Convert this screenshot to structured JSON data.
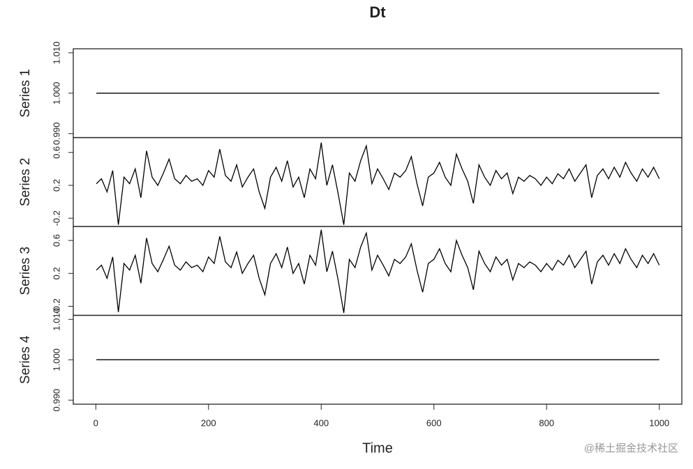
{
  "chart_data": [
    {
      "type": "line",
      "title": "Dt",
      "ylabel": "Series 1",
      "color": "#000000",
      "x": [
        1,
        1000
      ],
      "values": [
        1,
        1
      ],
      "xlim": [
        -40,
        1040
      ],
      "ylim": [
        0.989,
        1.011
      ],
      "yticks": [
        {
          "value": 0.99,
          "label": "0.990"
        },
        {
          "value": 1,
          "label": "1.000"
        },
        {
          "value": 1.01,
          "label": "1.010"
        }
      ]
    },
    {
      "type": "line",
      "ylabel": "Series 2",
      "color": "#000000",
      "x": [
        1,
        10,
        20,
        30,
        40,
        50,
        60,
        70,
        80,
        90,
        100,
        110,
        120,
        130,
        140,
        150,
        160,
        170,
        180,
        190,
        200,
        210,
        220,
        230,
        240,
        250,
        260,
        270,
        280,
        290,
        300,
        310,
        320,
        330,
        340,
        350,
        360,
        370,
        380,
        390,
        400,
        410,
        420,
        430,
        440,
        450,
        460,
        470,
        480,
        490,
        500,
        510,
        520,
        530,
        540,
        550,
        560,
        570,
        580,
        590,
        600,
        610,
        620,
        630,
        640,
        650,
        660,
        670,
        680,
        690,
        700,
        710,
        720,
        730,
        740,
        750,
        760,
        770,
        780,
        790,
        800,
        810,
        820,
        830,
        840,
        850,
        860,
        870,
        880,
        890,
        900,
        910,
        920,
        930,
        940,
        950,
        960,
        970,
        980,
        990,
        1000
      ],
      "values": [
        0.22,
        0.28,
        0.12,
        0.38,
        -0.28,
        0.3,
        0.22,
        0.4,
        0.05,
        0.62,
        0.3,
        0.2,
        0.35,
        0.52,
        0.28,
        0.22,
        0.32,
        0.25,
        0.28,
        0.2,
        0.38,
        0.3,
        0.64,
        0.32,
        0.25,
        0.45,
        0.18,
        0.3,
        0.4,
        0.12,
        -0.08,
        0.3,
        0.42,
        0.25,
        0.5,
        0.18,
        0.3,
        0.05,
        0.4,
        0.28,
        0.72,
        0.2,
        0.45,
        0.1,
        -0.28,
        0.35,
        0.25,
        0.5,
        0.68,
        0.22,
        0.4,
        0.28,
        0.15,
        0.35,
        0.3,
        0.38,
        0.55,
        0.22,
        -0.05,
        0.3,
        0.35,
        0.48,
        0.3,
        0.2,
        0.58,
        0.4,
        0.25,
        -0.02,
        0.45,
        0.3,
        0.2,
        0.38,
        0.28,
        0.35,
        0.1,
        0.3,
        0.25,
        0.32,
        0.28,
        0.2,
        0.3,
        0.22,
        0.34,
        0.28,
        0.4,
        0.25,
        0.35,
        0.45,
        0.05,
        0.32,
        0.4,
        0.28,
        0.42,
        0.3,
        0.48,
        0.35,
        0.25,
        0.4,
        0.3,
        0.42,
        0.28
      ],
      "xlim": [
        -40,
        1040
      ],
      "ylim": [
        -0.3,
        0.78
      ],
      "yticks": [
        -0.2,
        0.2,
        0.6
      ]
    },
    {
      "type": "line",
      "ylabel": "Series 3",
      "color": "#000000",
      "x": [
        1,
        10,
        20,
        30,
        40,
        50,
        60,
        70,
        80,
        90,
        100,
        110,
        120,
        130,
        140,
        150,
        160,
        170,
        180,
        190,
        200,
        210,
        220,
        230,
        240,
        250,
        260,
        270,
        280,
        290,
        300,
        310,
        320,
        330,
        340,
        350,
        360,
        370,
        380,
        390,
        400,
        410,
        420,
        430,
        440,
        450,
        460,
        470,
        480,
        490,
        500,
        510,
        520,
        530,
        540,
        550,
        560,
        570,
        580,
        590,
        600,
        610,
        620,
        630,
        640,
        650,
        660,
        670,
        680,
        690,
        700,
        710,
        720,
        730,
        740,
        750,
        760,
        770,
        780,
        790,
        800,
        810,
        820,
        830,
        840,
        850,
        860,
        870,
        880,
        890,
        900,
        910,
        920,
        930,
        940,
        950,
        960,
        970,
        980,
        990,
        1000
      ],
      "values": [
        0.24,
        0.3,
        0.14,
        0.4,
        -0.27,
        0.32,
        0.24,
        0.42,
        0.08,
        0.63,
        0.32,
        0.22,
        0.37,
        0.53,
        0.3,
        0.24,
        0.34,
        0.27,
        0.3,
        0.22,
        0.4,
        0.32,
        0.65,
        0.34,
        0.27,
        0.46,
        0.2,
        0.32,
        0.42,
        0.14,
        -0.06,
        0.32,
        0.44,
        0.27,
        0.52,
        0.2,
        0.32,
        0.07,
        0.42,
        0.3,
        0.73,
        0.22,
        0.47,
        0.12,
        -0.28,
        0.37,
        0.27,
        0.52,
        0.69,
        0.24,
        0.42,
        0.3,
        0.17,
        0.37,
        0.32,
        0.4,
        0.56,
        0.24,
        -0.03,
        0.32,
        0.37,
        0.5,
        0.32,
        0.22,
        0.6,
        0.42,
        0.27,
        0.0,
        0.47,
        0.32,
        0.22,
        0.4,
        0.3,
        0.37,
        0.12,
        0.32,
        0.27,
        0.34,
        0.3,
        0.22,
        0.32,
        0.24,
        0.36,
        0.3,
        0.42,
        0.27,
        0.37,
        0.47,
        0.07,
        0.34,
        0.42,
        0.3,
        0.44,
        0.32,
        0.5,
        0.37,
        0.27,
        0.42,
        0.32,
        0.44,
        0.3
      ],
      "xlim": [
        -40,
        1040
      ],
      "ylim": [
        -0.31,
        0.77
      ],
      "yticks": [
        -0.2,
        0.2,
        0.6
      ]
    },
    {
      "type": "line",
      "ylabel": "Series 4",
      "xlabel": "Time",
      "color": "#000000",
      "x": [
        1,
        1000
      ],
      "values": [
        1,
        1
      ],
      "xlim": [
        -40,
        1040
      ],
      "ylim": [
        0.989,
        1.011
      ],
      "yticks": [
        {
          "value": 0.99,
          "label": "0.990"
        },
        {
          "value": 1,
          "label": "1.000"
        },
        {
          "value": 1.01,
          "label": "1.010"
        }
      ],
      "xticks": [
        0,
        200,
        400,
        600,
        800,
        1000
      ]
    }
  ],
  "watermark": "@稀土掘金技术社区"
}
